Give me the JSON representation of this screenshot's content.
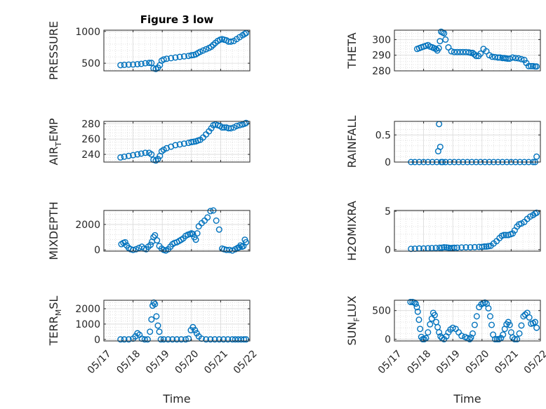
{
  "figure_title": "Figure 3 low",
  "colors": {
    "marker": "#0072BD",
    "axes": "#262626",
    "grid": "#bdbdbd",
    "background": "#ffffff"
  },
  "chart_data": [
    {
      "type": "scatter",
      "ylabel": "PRESSURE",
      "title": "Figure 3 low",
      "xlim": [
        0,
        5
      ],
      "ylim": [
        380,
        1020
      ],
      "yticks": [
        500,
        1000
      ],
      "ytick_labels": [
        "500",
        "1000"
      ],
      "xticks": [
        0,
        1,
        2,
        3,
        4,
        5
      ],
      "xtick_labels": [],
      "xlabel": "",
      "grid": true,
      "series": [
        {
          "x": [
            0.57,
            0.7,
            0.85,
            1.0,
            1.15,
            1.28,
            1.42,
            1.55,
            1.63,
            1.7,
            1.78,
            1.85,
            1.92,
            1.98,
            2.05,
            2.15,
            2.3,
            2.45,
            2.6,
            2.75,
            2.9,
            3.0,
            3.08,
            3.15,
            3.22,
            3.3,
            3.4,
            3.5,
            3.6,
            3.68,
            3.75,
            3.82,
            3.9,
            3.98,
            4.05,
            4.12,
            4.2,
            4.27,
            4.35,
            4.45,
            4.55,
            4.65,
            4.75,
            4.82,
            4.87
          ],
          "y": [
            470,
            475,
            478,
            480,
            485,
            490,
            500,
            505,
            505,
            420,
            410,
            430,
            470,
            540,
            560,
            570,
            580,
            590,
            600,
            608,
            615,
            625,
            630,
            640,
            660,
            680,
            700,
            720,
            740,
            760,
            790,
            820,
            850,
            870,
            880,
            870,
            860,
            840,
            840,
            850,
            880,
            910,
            940,
            960,
            975
          ]
        }
      ]
    },
    {
      "type": "scatter",
      "ylabel": "THETA",
      "xlim": [
        0,
        5
      ],
      "ylim": [
        280,
        306
      ],
      "yticks": [
        280,
        290,
        300
      ],
      "ytick_labels": [
        "280",
        "290",
        "300"
      ],
      "xticks": [
        0,
        1,
        2,
        3,
        4,
        5
      ],
      "xtick_labels": [],
      "xlabel": "",
      "grid": true,
      "series": [
        {
          "x": [
            0.78,
            0.85,
            0.92,
            1.0,
            1.08,
            1.15,
            1.22,
            1.3,
            1.36,
            1.42,
            1.47,
            1.52,
            1.56,
            1.6,
            1.65,
            1.7,
            1.75,
            1.85,
            1.95,
            2.05,
            2.15,
            2.25,
            2.35,
            2.45,
            2.55,
            2.62,
            2.68,
            2.74,
            2.8,
            2.88,
            2.95,
            3.05,
            3.15,
            3.25,
            3.35,
            3.45,
            3.55,
            3.62,
            3.7,
            3.76,
            3.82,
            3.88,
            3.95,
            4.05,
            4.15,
            4.25,
            4.35,
            4.45,
            4.52,
            4.6,
            4.68,
            4.75,
            4.82,
            4.87
          ],
          "y": [
            294,
            294.5,
            295,
            295.5,
            296,
            296.5,
            295.5,
            295,
            294.5,
            294,
            293,
            294.5,
            299,
            305,
            304.5,
            304,
            300,
            295,
            292.5,
            292,
            292,
            292,
            292,
            292,
            291.8,
            291.5,
            291.5,
            290.5,
            289.5,
            289.5,
            291,
            294,
            292.5,
            290,
            289,
            288.8,
            288.5,
            288.5,
            288.2,
            288.2,
            288,
            287.8,
            287.8,
            288.5,
            288.2,
            288,
            287.5,
            287,
            285,
            283,
            283,
            283,
            282.8,
            282.8
          ]
        }
      ]
    },
    {
      "type": "scatter",
      "ylabel": "AIR_TEMP",
      "xlim": [
        0,
        5
      ],
      "ylim": [
        230,
        283
      ],
      "yticks": [
        240,
        260,
        280
      ],
      "ytick_labels": [
        "240",
        "260",
        "280"
      ],
      "xticks": [
        0,
        1,
        2,
        3,
        4,
        5
      ],
      "xtick_labels": [],
      "xlabel": "",
      "grid": true,
      "series": [
        {
          "x": [
            0.57,
            0.7,
            0.85,
            1.0,
            1.15,
            1.28,
            1.42,
            1.55,
            1.63,
            1.7,
            1.78,
            1.85,
            1.92,
            1.98,
            2.05,
            2.15,
            2.3,
            2.45,
            2.6,
            2.75,
            2.9,
            3.0,
            3.08,
            3.15,
            3.22,
            3.3,
            3.4,
            3.5,
            3.6,
            3.68,
            3.75,
            3.82,
            3.9,
            3.98,
            4.05,
            4.12,
            4.2,
            4.27,
            4.35,
            4.45,
            4.55,
            4.65,
            4.75,
            4.82,
            4.87
          ],
          "y": [
            236,
            237,
            238,
            239,
            240,
            241,
            242,
            242,
            240,
            233,
            232,
            234,
            238,
            244,
            246,
            248,
            250,
            252,
            253,
            254,
            255,
            256,
            256.5,
            257,
            258,
            259,
            262,
            266,
            270,
            274,
            278,
            279,
            278,
            277,
            275,
            275,
            275,
            274,
            274,
            275,
            277,
            278,
            279,
            280,
            281
          ]
        }
      ]
    },
    {
      "type": "scatter",
      "ylabel": "RAINFALL",
      "xlim": [
        0,
        5
      ],
      "ylim": [
        0,
        0.75
      ],
      "yticks": [
        0,
        0.5
      ],
      "ytick_labels": [
        "0",
        "0.5"
      ],
      "xticks": [
        0,
        1,
        2,
        3,
        4,
        5
      ],
      "xtick_labels": [],
      "xlabel": "",
      "grid": true,
      "series": [
        {
          "x": [
            0.57,
            0.7,
            0.85,
            1.0,
            1.15,
            1.3,
            1.45,
            1.5,
            1.53,
            1.57,
            1.6,
            1.65,
            1.75,
            1.9,
            2.05,
            2.2,
            2.35,
            2.5,
            2.65,
            2.8,
            2.95,
            3.1,
            3.25,
            3.4,
            3.55,
            3.7,
            3.85,
            4.0,
            4.15,
            4.3,
            4.45,
            4.6,
            4.75,
            4.82,
            4.87
          ],
          "y": [
            0,
            0,
            0,
            0,
            0,
            0,
            0,
            0.2,
            0.7,
            0.28,
            0,
            0,
            0,
            0,
            0,
            0,
            0,
            0,
            0,
            0,
            0,
            0,
            0,
            0,
            0,
            0,
            0,
            0,
            0,
            0,
            0,
            0,
            0,
            0,
            0.1
          ]
        }
      ]
    },
    {
      "type": "scatter",
      "ylabel": "MIXDEPTH",
      "xlim": [
        0,
        5
      ],
      "ylim": [
        -100,
        3100
      ],
      "yticks": [
        0,
        2000
      ],
      "ytick_labels": [
        "0",
        "2000"
      ],
      "xticks": [
        0,
        1,
        2,
        3,
        4,
        5
      ],
      "xtick_labels": [],
      "xlabel": "",
      "grid": true,
      "series": [
        {
          "x": [
            0.6,
            0.67,
            0.73,
            0.78,
            0.85,
            0.92,
            1.0,
            1.1,
            1.2,
            1.3,
            1.38,
            1.45,
            1.52,
            1.6,
            1.65,
            1.7,
            1.75,
            1.82,
            1.9,
            1.98,
            2.05,
            2.12,
            2.2,
            2.28,
            2.35,
            2.42,
            2.5,
            2.58,
            2.65,
            2.72,
            2.8,
            2.88,
            2.95,
            3.0,
            3.05,
            3.1,
            3.15,
            3.2,
            3.25,
            3.35,
            3.45,
            3.55,
            3.65,
            3.75,
            3.85,
            3.95,
            4.05,
            4.12,
            4.2,
            4.3,
            4.4,
            4.5,
            4.58,
            4.63,
            4.68,
            4.73,
            4.78,
            4.83,
            4.87
          ],
          "y": [
            450,
            550,
            600,
            350,
            150,
            50,
            0,
            50,
            150,
            250,
            100,
            50,
            250,
            400,
            650,
            1000,
            1150,
            750,
            300,
            100,
            0,
            -50,
            50,
            250,
            450,
            550,
            600,
            700,
            800,
            900,
            1100,
            1200,
            1250,
            1300,
            1250,
            1000,
            800,
            1300,
            1850,
            2100,
            2300,
            2550,
            3050,
            3100,
            2300,
            1600,
            100,
            50,
            0,
            0,
            -50,
            50,
            150,
            200,
            350,
            250,
            300,
            800,
            600
          ]
        }
      ]
    },
    {
      "type": "scatter",
      "ylabel": "H2OMIXRA",
      "xlim": [
        0,
        5
      ],
      "ylim": [
        -0.2,
        5.1
      ],
      "yticks": [
        0,
        5
      ],
      "ytick_labels": [
        "0",
        "5"
      ],
      "xticks": [
        0,
        1,
        2,
        3,
        4,
        5
      ],
      "xtick_labels": [],
      "xlabel": "",
      "grid": true,
      "series": [
        {
          "x": [
            0.57,
            0.7,
            0.85,
            1.0,
            1.15,
            1.28,
            1.42,
            1.55,
            1.63,
            1.7,
            1.78,
            1.85,
            1.92,
            1.98,
            2.05,
            2.15,
            2.3,
            2.45,
            2.6,
            2.75,
            2.9,
            3.0,
            3.08,
            3.15,
            3.22,
            3.3,
            3.4,
            3.5,
            3.6,
            3.68,
            3.75,
            3.82,
            3.9,
            3.98,
            4.05,
            4.12,
            4.2,
            4.27,
            4.35,
            4.45,
            4.55,
            4.65,
            4.75,
            4.82,
            4.87
          ],
          "y": [
            0.1,
            0.12,
            0.15,
            0.15,
            0.18,
            0.2,
            0.22,
            0.25,
            0.25,
            0.3,
            0.28,
            0.25,
            0.2,
            0.22,
            0.25,
            0.25,
            0.28,
            0.3,
            0.3,
            0.32,
            0.35,
            0.35,
            0.4,
            0.4,
            0.45,
            0.5,
            0.8,
            1.1,
            1.5,
            1.8,
            1.9,
            1.9,
            1.9,
            2.0,
            2.1,
            2.5,
            3.0,
            3.3,
            3.4,
            3.6,
            4.0,
            4.3,
            4.5,
            4.7,
            4.8
          ]
        }
      ]
    },
    {
      "type": "scatter",
      "ylabel": "TERR_MSL",
      "xlim": [
        0,
        5
      ],
      "ylim": [
        -100,
        2550
      ],
      "yticks": [
        0,
        1000,
        2000
      ],
      "ytick_labels": [
        "0",
        "1000",
        "2000"
      ],
      "xticks": [
        0,
        1,
        2,
        3,
        4,
        5
      ],
      "xtick_labels": [
        "05/17",
        "05/18",
        "05/19",
        "05/20",
        "05/21",
        "05/22"
      ],
      "xlabel": "Time",
      "grid": true,
      "series": [
        {
          "x": [
            0.57,
            0.7,
            0.85,
            1.0,
            1.08,
            1.15,
            1.22,
            1.3,
            1.4,
            1.5,
            1.58,
            1.63,
            1.67,
            1.71,
            1.75,
            1.8,
            1.85,
            1.9,
            1.95,
            2.05,
            2.2,
            2.35,
            2.5,
            2.65,
            2.8,
            2.9,
            2.98,
            3.05,
            3.12,
            3.18,
            3.25,
            3.35,
            3.5,
            3.65,
            3.8,
            3.95,
            4.1,
            4.25,
            4.4,
            4.5,
            4.6,
            4.7,
            4.8,
            4.87
          ],
          "y": [
            0,
            0,
            0,
            50,
            200,
            400,
            300,
            50,
            0,
            0,
            500,
            1300,
            2200,
            2400,
            2300,
            1500,
            900,
            500,
            0,
            0,
            0,
            0,
            0,
            0,
            0,
            50,
            600,
            800,
            600,
            400,
            200,
            50,
            0,
            0,
            0,
            0,
            0,
            0,
            0,
            0,
            0,
            0,
            0,
            0
          ]
        }
      ]
    },
    {
      "type": "scatter",
      "ylabel": "SUN_FLUX",
      "xlim": [
        0,
        5
      ],
      "ylim": [
        -30,
        680
      ],
      "yticks": [
        0,
        500
      ],
      "ytick_labels": [
        "0",
        "500"
      ],
      "xticks": [
        0,
        1,
        2,
        3,
        4,
        5
      ],
      "xtick_labels": [
        "05/17",
        "05/18",
        "05/19",
        "05/20",
        "05/21",
        "05/22"
      ],
      "xlabel": "Time",
      "grid": true,
      "series": [
        {
          "x": [
            0.55,
            0.62,
            0.68,
            0.73,
            0.77,
            0.8,
            0.84,
            0.88,
            0.92,
            0.97,
            1.02,
            1.08,
            1.15,
            1.22,
            1.28,
            1.33,
            1.38,
            1.43,
            1.48,
            1.53,
            1.58,
            1.63,
            1.7,
            1.78,
            1.85,
            1.92,
            2.0,
            2.1,
            2.2,
            2.3,
            2.42,
            2.5,
            2.58,
            2.62,
            2.68,
            2.75,
            2.82,
            2.9,
            2.98,
            3.04,
            3.1,
            3.16,
            3.22,
            3.28,
            3.33,
            3.38,
            3.45,
            3.52,
            3.58,
            3.65,
            3.72,
            3.78,
            3.84,
            3.9,
            3.95,
            4.0,
            4.05,
            4.12,
            4.2,
            4.28,
            4.35,
            4.42,
            4.48,
            4.55,
            4.62,
            4.68,
            4.75,
            4.82,
            4.87
          ],
          "y": [
            650,
            650,
            640,
            620,
            560,
            480,
            340,
            180,
            40,
            0,
            0,
            20,
            120,
            260,
            360,
            460,
            420,
            300,
            210,
            120,
            50,
            20,
            0,
            50,
            120,
            170,
            200,
            180,
            120,
            60,
            40,
            20,
            0,
            30,
            100,
            250,
            400,
            560,
            610,
            630,
            640,
            620,
            540,
            400,
            250,
            80,
            0,
            0,
            0,
            20,
            80,
            180,
            260,
            300,
            250,
            120,
            30,
            0,
            0,
            100,
            240,
            400,
            430,
            460,
            380,
            270,
            280,
            300,
            200
          ]
        }
      ]
    }
  ]
}
